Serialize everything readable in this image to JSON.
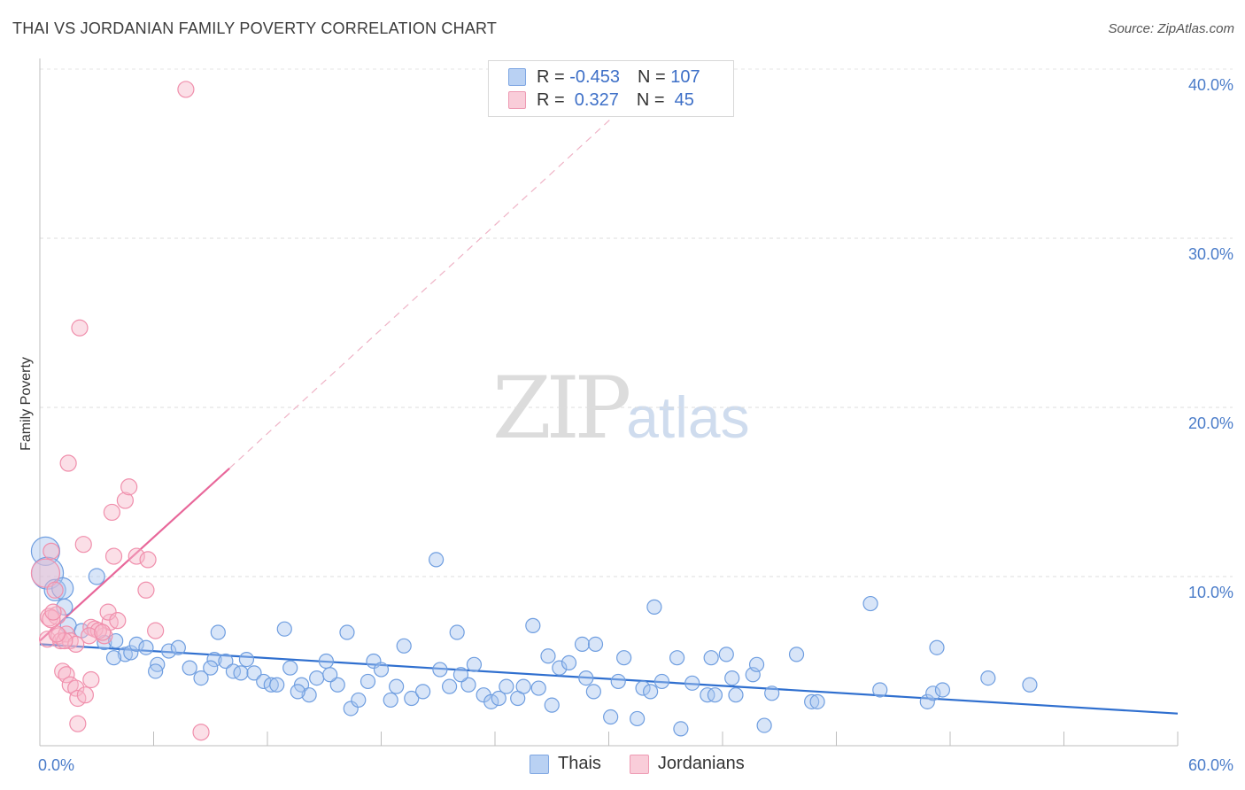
{
  "header": {
    "title": "THAI VS JORDANIAN FAMILY POVERTY CORRELATION CHART",
    "source": "Source: ZipAtlas.com"
  },
  "legend": {
    "rows": [
      {
        "r_label": "R = ",
        "r_value": "-0.453",
        "n_label": "N = ",
        "n_value": "107",
        "color": "#a9c6f0"
      },
      {
        "r_label": "R = ",
        "r_value": " 0.327",
        "n_label": "N = ",
        "n_value": " 45",
        "color": "#f6b8c9"
      }
    ]
  },
  "bottom_legend": [
    {
      "label": "Thais",
      "color": "#a9c6f0"
    },
    {
      "label": "Jordanians",
      "color": "#f6b8c9"
    }
  ],
  "watermark": {
    "zip": "ZIP",
    "atlas": "atlas"
  },
  "chart_data": {
    "type": "scatter",
    "xlabel": "",
    "ylabel": "Family Poverty",
    "xlim": [
      0,
      60
    ],
    "ylim": [
      0,
      42
    ],
    "x_tick_labels": [
      "0.0%",
      "60.0%"
    ],
    "y_ticks": [
      10,
      20,
      30,
      40
    ],
    "y_tick_labels": [
      "10.0%",
      "20.0%",
      "30.0%",
      "40.0%"
    ],
    "grid": "horizontal dashed",
    "legend_placement": "top-center",
    "series": [
      {
        "name": "Thais",
        "color": "#6f9ee0",
        "trend": {
          "x": [
            0,
            60
          ],
          "y": [
            6.0,
            1.9
          ],
          "color": "#2f6fcf"
        },
        "points": [
          [
            0.3,
            11.5,
            16
          ],
          [
            0.4,
            10.2,
            18
          ],
          [
            0.8,
            9.2,
            12
          ],
          [
            1.2,
            9.3,
            12
          ],
          [
            1.3,
            8.2,
            9
          ],
          [
            1.5,
            7.1,
            9
          ],
          [
            3.0,
            10.0,
            9
          ],
          [
            2.2,
            6.8,
            8
          ],
          [
            3.4,
            6.1,
            8
          ],
          [
            4.0,
            6.2,
            8
          ],
          [
            4.5,
            5.4,
            8
          ],
          [
            3.9,
            5.2,
            8
          ],
          [
            4.8,
            5.5,
            8
          ],
          [
            5.1,
            6.0,
            8
          ],
          [
            5.6,
            5.8,
            8
          ],
          [
            6.2,
            4.8,
            8
          ],
          [
            6.1,
            4.4,
            8
          ],
          [
            6.8,
            5.6,
            8
          ],
          [
            7.3,
            5.8,
            8
          ],
          [
            7.9,
            4.6,
            8
          ],
          [
            8.5,
            4.0,
            8
          ],
          [
            9.2,
            5.1,
            8
          ],
          [
            9.4,
            6.7,
            8
          ],
          [
            9.8,
            5.0,
            8
          ],
          [
            10.2,
            4.4,
            8
          ],
          [
            10.6,
            4.3,
            8
          ],
          [
            10.9,
            5.1,
            8
          ],
          [
            11.3,
            4.3,
            8
          ],
          [
            11.8,
            3.8,
            8
          ],
          [
            12.2,
            3.6,
            8
          ],
          [
            12.5,
            3.6,
            8
          ],
          [
            12.9,
            6.9,
            8
          ],
          [
            13.2,
            4.6,
            8
          ],
          [
            13.8,
            3.6,
            8
          ],
          [
            14.2,
            3.0,
            8
          ],
          [
            14.6,
            4.0,
            8
          ],
          [
            15.1,
            5.0,
            8
          ],
          [
            15.7,
            3.6,
            8
          ],
          [
            16.2,
            6.7,
            8
          ],
          [
            16.4,
            2.2,
            8
          ],
          [
            16.8,
            2.7,
            8
          ],
          [
            17.3,
            3.8,
            8
          ],
          [
            17.6,
            5.0,
            8
          ],
          [
            18.0,
            4.5,
            8
          ],
          [
            18.5,
            2.7,
            8
          ],
          [
            18.8,
            3.5,
            8
          ],
          [
            19.2,
            5.9,
            8
          ],
          [
            19.6,
            2.8,
            8
          ],
          [
            20.2,
            3.2,
            8
          ],
          [
            20.9,
            11.0,
            8
          ],
          [
            21.1,
            4.5,
            8
          ],
          [
            21.6,
            3.5,
            8
          ],
          [
            22.0,
            6.7,
            8
          ],
          [
            22.6,
            3.6,
            8
          ],
          [
            22.9,
            4.8,
            8
          ],
          [
            23.4,
            3.0,
            8
          ],
          [
            23.8,
            2.6,
            8
          ],
          [
            24.2,
            2.8,
            8
          ],
          [
            24.6,
            3.5,
            8
          ],
          [
            25.2,
            2.8,
            8
          ],
          [
            25.5,
            3.5,
            8
          ],
          [
            26.0,
            7.1,
            8
          ],
          [
            26.3,
            3.4,
            8
          ],
          [
            26.8,
            5.3,
            8
          ],
          [
            27.0,
            2.4,
            8
          ],
          [
            27.4,
            4.6,
            8
          ],
          [
            28.6,
            6.0,
            8
          ],
          [
            28.8,
            4.0,
            8
          ],
          [
            29.2,
            3.2,
            8
          ],
          [
            29.3,
            6.0,
            8
          ],
          [
            30.1,
            1.7,
            8
          ],
          [
            30.5,
            3.8,
            8
          ],
          [
            30.8,
            5.2,
            8
          ],
          [
            31.5,
            1.6,
            8
          ],
          [
            31.8,
            3.4,
            8
          ],
          [
            32.2,
            3.2,
            8
          ],
          [
            32.4,
            8.2,
            8
          ],
          [
            32.8,
            3.8,
            8
          ],
          [
            33.6,
            5.2,
            8
          ],
          [
            33.8,
            1.0,
            8
          ],
          [
            34.4,
            3.7,
            8
          ],
          [
            35.2,
            3.0,
            8
          ],
          [
            35.4,
            5.2,
            8
          ],
          [
            35.6,
            3.0,
            8
          ],
          [
            36.2,
            5.4,
            8
          ],
          [
            36.7,
            3.0,
            8
          ],
          [
            37.6,
            4.2,
            8
          ],
          [
            37.8,
            4.8,
            8
          ],
          [
            38.2,
            1.2,
            8
          ],
          [
            38.6,
            3.1,
            8
          ],
          [
            39.9,
            5.4,
            8
          ],
          [
            40.7,
            2.6,
            8
          ],
          [
            41.0,
            2.6,
            8
          ],
          [
            43.8,
            8.4,
            8
          ],
          [
            44.3,
            3.3,
            8
          ],
          [
            46.8,
            2.6,
            8
          ],
          [
            47.1,
            3.1,
            8
          ],
          [
            47.3,
            5.8,
            8
          ],
          [
            47.6,
            3.3,
            8
          ],
          [
            50.0,
            4.0,
            8
          ],
          [
            52.2,
            3.6,
            8
          ],
          [
            36.5,
            4.0,
            8
          ],
          [
            9.0,
            4.6,
            8
          ],
          [
            15.3,
            4.2,
            8
          ],
          [
            22.2,
            4.2,
            8
          ],
          [
            27.9,
            4.9,
            8
          ],
          [
            13.6,
            3.2,
            8
          ]
        ]
      },
      {
        "name": "Jordanians",
        "color": "#f08fac",
        "trend": {
          "x": [
            0,
            10
          ],
          "y": [
            6.2,
            16.4
          ],
          "color": "#e8679a",
          "dashed_extension": {
            "x": [
              10,
              32
            ],
            "y": [
              16.4,
              39.0
            ]
          }
        },
        "points": [
          [
            0.3,
            10.2,
            16
          ],
          [
            0.6,
            11.5,
            9
          ],
          [
            0.8,
            9.2,
            9
          ],
          [
            0.5,
            7.6,
            10
          ],
          [
            0.9,
            7.7,
            10
          ],
          [
            0.6,
            7.5,
            10
          ],
          [
            0.4,
            6.3,
            9
          ],
          [
            1.0,
            6.5,
            9
          ],
          [
            1.1,
            6.2,
            9
          ],
          [
            1.4,
            6.6,
            9
          ],
          [
            1.6,
            6.2,
            9
          ],
          [
            1.9,
            6.0,
            9
          ],
          [
            1.2,
            4.4,
            9
          ],
          [
            1.4,
            4.2,
            9
          ],
          [
            1.6,
            3.6,
            9
          ],
          [
            1.9,
            3.4,
            9
          ],
          [
            2.0,
            2.8,
            9
          ],
          [
            2.4,
            3.0,
            9
          ],
          [
            2.7,
            3.9,
            9
          ],
          [
            2.0,
            1.3,
            9
          ],
          [
            2.1,
            24.7,
            9
          ],
          [
            2.3,
            11.9,
            9
          ],
          [
            1.5,
            16.7,
            9
          ],
          [
            3.8,
            13.8,
            9
          ],
          [
            4.5,
            14.5,
            9
          ],
          [
            4.7,
            15.3,
            9
          ],
          [
            3.9,
            11.2,
            9
          ],
          [
            5.1,
            11.2,
            9
          ],
          [
            5.7,
            11.0,
            9
          ],
          [
            5.6,
            9.2,
            9
          ],
          [
            2.7,
            7.0,
            9
          ],
          [
            3.4,
            6.5,
            9
          ],
          [
            3.7,
            7.3,
            9
          ],
          [
            3.6,
            7.9,
            9
          ],
          [
            4.1,
            7.4,
            9
          ],
          [
            2.9,
            6.9,
            9
          ],
          [
            3.1,
            6.8,
            9
          ],
          [
            6.1,
            6.8,
            9
          ],
          [
            7.7,
            38.8,
            9
          ],
          [
            8.5,
            0.8,
            9
          ],
          [
            0.7,
            7.9,
            9
          ],
          [
            1.3,
            6.2,
            9
          ],
          [
            2.6,
            6.5,
            9
          ],
          [
            3.3,
            6.7,
            9
          ],
          [
            0.9,
            6.6,
            9
          ]
        ]
      }
    ]
  }
}
